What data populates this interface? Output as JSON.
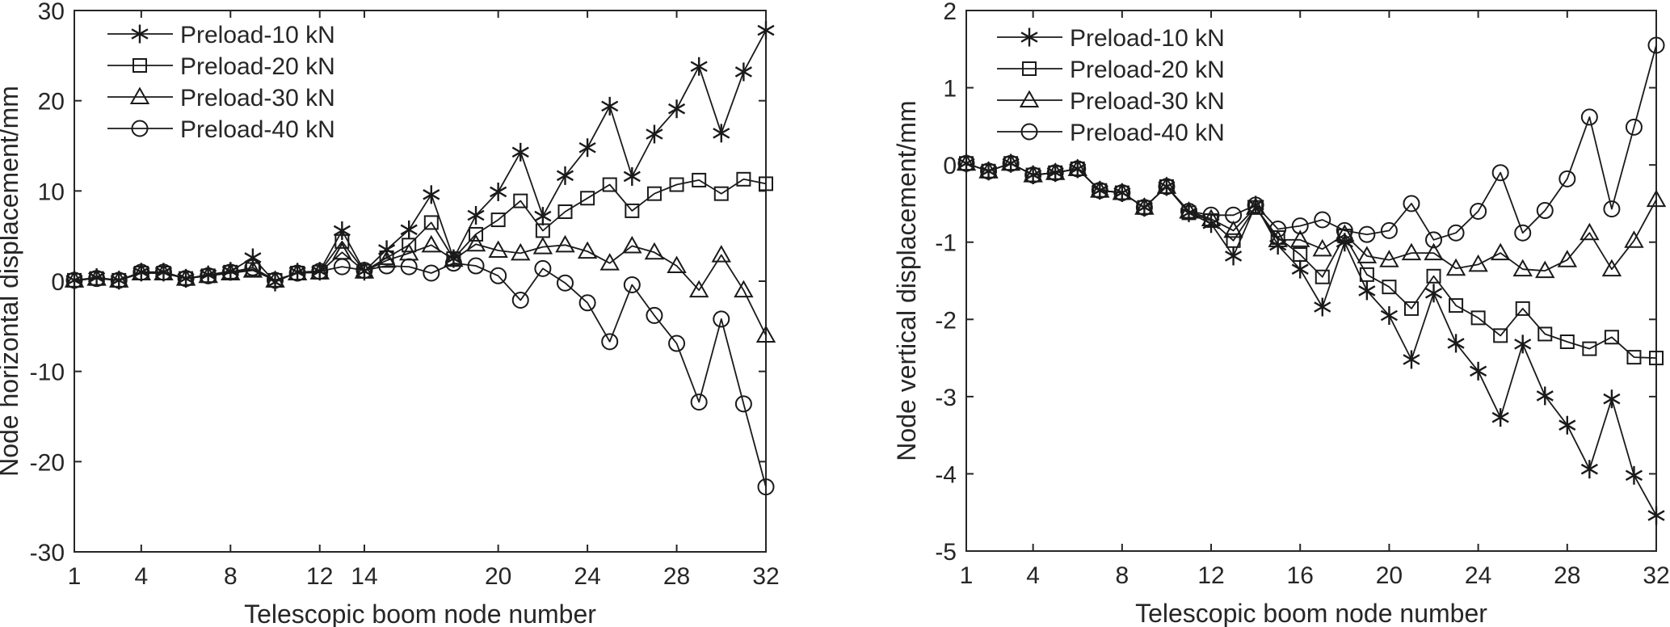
{
  "figure": {
    "background": "#ffffff",
    "line_color": "#1a1a1a",
    "text_color": "#262626",
    "axis_color": "#262626"
  },
  "chart_data": [
    {
      "type": "line",
      "title": "",
      "xlabel": "Telescopic boom node number",
      "ylabel": "Node horizontal displacement/mm",
      "xlim": [
        1,
        32
      ],
      "ylim": [
        -30,
        30
      ],
      "xticks": [
        1,
        4,
        8,
        12,
        14,
        20,
        24,
        28,
        32
      ],
      "yticks": [
        30,
        20,
        10,
        0,
        -10,
        -20,
        -30
      ],
      "grid": false,
      "legend_position": "top-left",
      "x": [
        1,
        2,
        3,
        4,
        5,
        6,
        7,
        8,
        9,
        10,
        11,
        12,
        13,
        14,
        15,
        16,
        17,
        18,
        19,
        20,
        21,
        22,
        23,
        24,
        25,
        26,
        27,
        28,
        29,
        30,
        31,
        32
      ],
      "series": [
        {
          "name": "Preload-10 kN",
          "marker": "asterisk",
          "values": [
            0.1,
            0.4,
            0.1,
            1.0,
            1.0,
            0.3,
            0.7,
            1.1,
            2.6,
            -0.1,
            1.0,
            1.1,
            5.6,
            1.1,
            3.5,
            5.7,
            9.6,
            2.5,
            7.3,
            9.9,
            14.3,
            7.2,
            11.7,
            14.8,
            19.4,
            11.6,
            16.3,
            19.1,
            23.8,
            16.4,
            23.2,
            27.8
          ]
        },
        {
          "name": "Preload-20 kN",
          "marker": "square",
          "values": [
            0.1,
            0.3,
            0.1,
            0.9,
            0.9,
            0.3,
            0.6,
            1.0,
            1.3,
            0.1,
            0.9,
            1.0,
            4.4,
            1.1,
            2.6,
            4.0,
            6.5,
            2.5,
            5.2,
            6.8,
            8.9,
            5.6,
            7.7,
            9.2,
            10.7,
            7.8,
            9.7,
            10.7,
            11.2,
            9.7,
            11.3,
            10.8
          ]
        },
        {
          "name": "Preload-30 kN",
          "marker": "triangle",
          "values": [
            0.1,
            0.3,
            0.1,
            0.9,
            0.9,
            0.3,
            0.6,
            0.9,
            1.2,
            0.1,
            0.9,
            1.0,
            3.2,
            1.1,
            2.3,
            3.1,
            4.0,
            2.4,
            4.1,
            3.4,
            3.1,
            3.8,
            4.0,
            3.3,
            2.0,
            3.9,
            3.2,
            1.7,
            -1.0,
            2.9,
            -1.0,
            -6.0
          ]
        },
        {
          "name": "Preload-40 kN",
          "marker": "circle",
          "values": [
            0.1,
            0.3,
            0.1,
            1.0,
            1.0,
            0.3,
            0.6,
            1.0,
            1.5,
            0.1,
            0.9,
            1.1,
            1.6,
            1.2,
            1.7,
            1.6,
            0.9,
            2.0,
            1.7,
            0.6,
            -2.1,
            1.4,
            -0.2,
            -2.4,
            -6.7,
            -0.4,
            -3.8,
            -6.9,
            -13.4,
            -4.2,
            -13.6,
            -22.8
          ]
        }
      ]
    },
    {
      "type": "line",
      "title": "",
      "xlabel": "Telescopic boom node number",
      "ylabel": "Node vertical displacement/mm",
      "xlim": [
        1,
        32
      ],
      "ylim": [
        -5,
        2
      ],
      "xticks": [
        1,
        4,
        8,
        12,
        16,
        20,
        24,
        28,
        32
      ],
      "yticks": [
        2,
        1,
        0,
        -1,
        -2,
        -3,
        -4,
        -5
      ],
      "grid": false,
      "legend_position": "top-left",
      "x": [
        1,
        2,
        3,
        4,
        5,
        6,
        7,
        8,
        9,
        10,
        11,
        12,
        13,
        14,
        15,
        16,
        17,
        18,
        19,
        20,
        21,
        22,
        23,
        24,
        25,
        26,
        27,
        28,
        29,
        30,
        31,
        32
      ],
      "series": [
        {
          "name": "Preload-10 kN",
          "marker": "asterisk",
          "values": [
            0.02,
            -0.08,
            0.02,
            -0.13,
            -0.1,
            -0.05,
            -0.33,
            -0.36,
            -0.55,
            -0.28,
            -0.62,
            -0.76,
            -1.18,
            -0.52,
            -1.04,
            -1.35,
            -1.84,
            -1.0,
            -1.63,
            -1.95,
            -2.52,
            -1.66,
            -2.31,
            -2.67,
            -3.27,
            -2.32,
            -2.99,
            -3.37,
            -3.94,
            -3.03,
            -4.02,
            -4.54
          ]
        },
        {
          "name": "Preload-20 kN",
          "marker": "square",
          "values": [
            0.02,
            -0.08,
            0.02,
            -0.13,
            -0.1,
            -0.05,
            -0.33,
            -0.36,
            -0.55,
            -0.28,
            -0.62,
            -0.72,
            -0.98,
            -0.55,
            -0.94,
            -1.16,
            -1.45,
            -0.92,
            -1.42,
            -1.58,
            -1.86,
            -1.44,
            -1.82,
            -1.98,
            -2.21,
            -1.86,
            -2.19,
            -2.29,
            -2.38,
            -2.23,
            -2.49,
            -2.5
          ]
        },
        {
          "name": "Preload-30 kN",
          "marker": "triangle",
          "values": [
            0.02,
            -0.08,
            0.02,
            -0.13,
            -0.1,
            -0.05,
            -0.33,
            -0.36,
            -0.55,
            -0.28,
            -0.6,
            -0.7,
            -0.85,
            -0.55,
            -0.97,
            -0.97,
            -1.09,
            -0.9,
            -1.18,
            -1.23,
            -1.14,
            -1.14,
            -1.34,
            -1.29,
            -1.14,
            -1.35,
            -1.37,
            -1.23,
            -0.88,
            -1.35,
            -0.98,
            -0.45
          ]
        },
        {
          "name": "Preload-40 kN",
          "marker": "circle",
          "values": [
            0.02,
            -0.08,
            0.02,
            -0.13,
            -0.1,
            -0.05,
            -0.33,
            -0.36,
            -0.55,
            -0.28,
            -0.6,
            -0.65,
            -0.65,
            -0.52,
            -0.83,
            -0.79,
            -0.71,
            -0.85,
            -0.9,
            -0.85,
            -0.5,
            -0.97,
            -0.88,
            -0.6,
            -0.1,
            -0.88,
            -0.59,
            -0.18,
            0.62,
            -0.57,
            0.49,
            1.55
          ]
        }
      ]
    }
  ]
}
